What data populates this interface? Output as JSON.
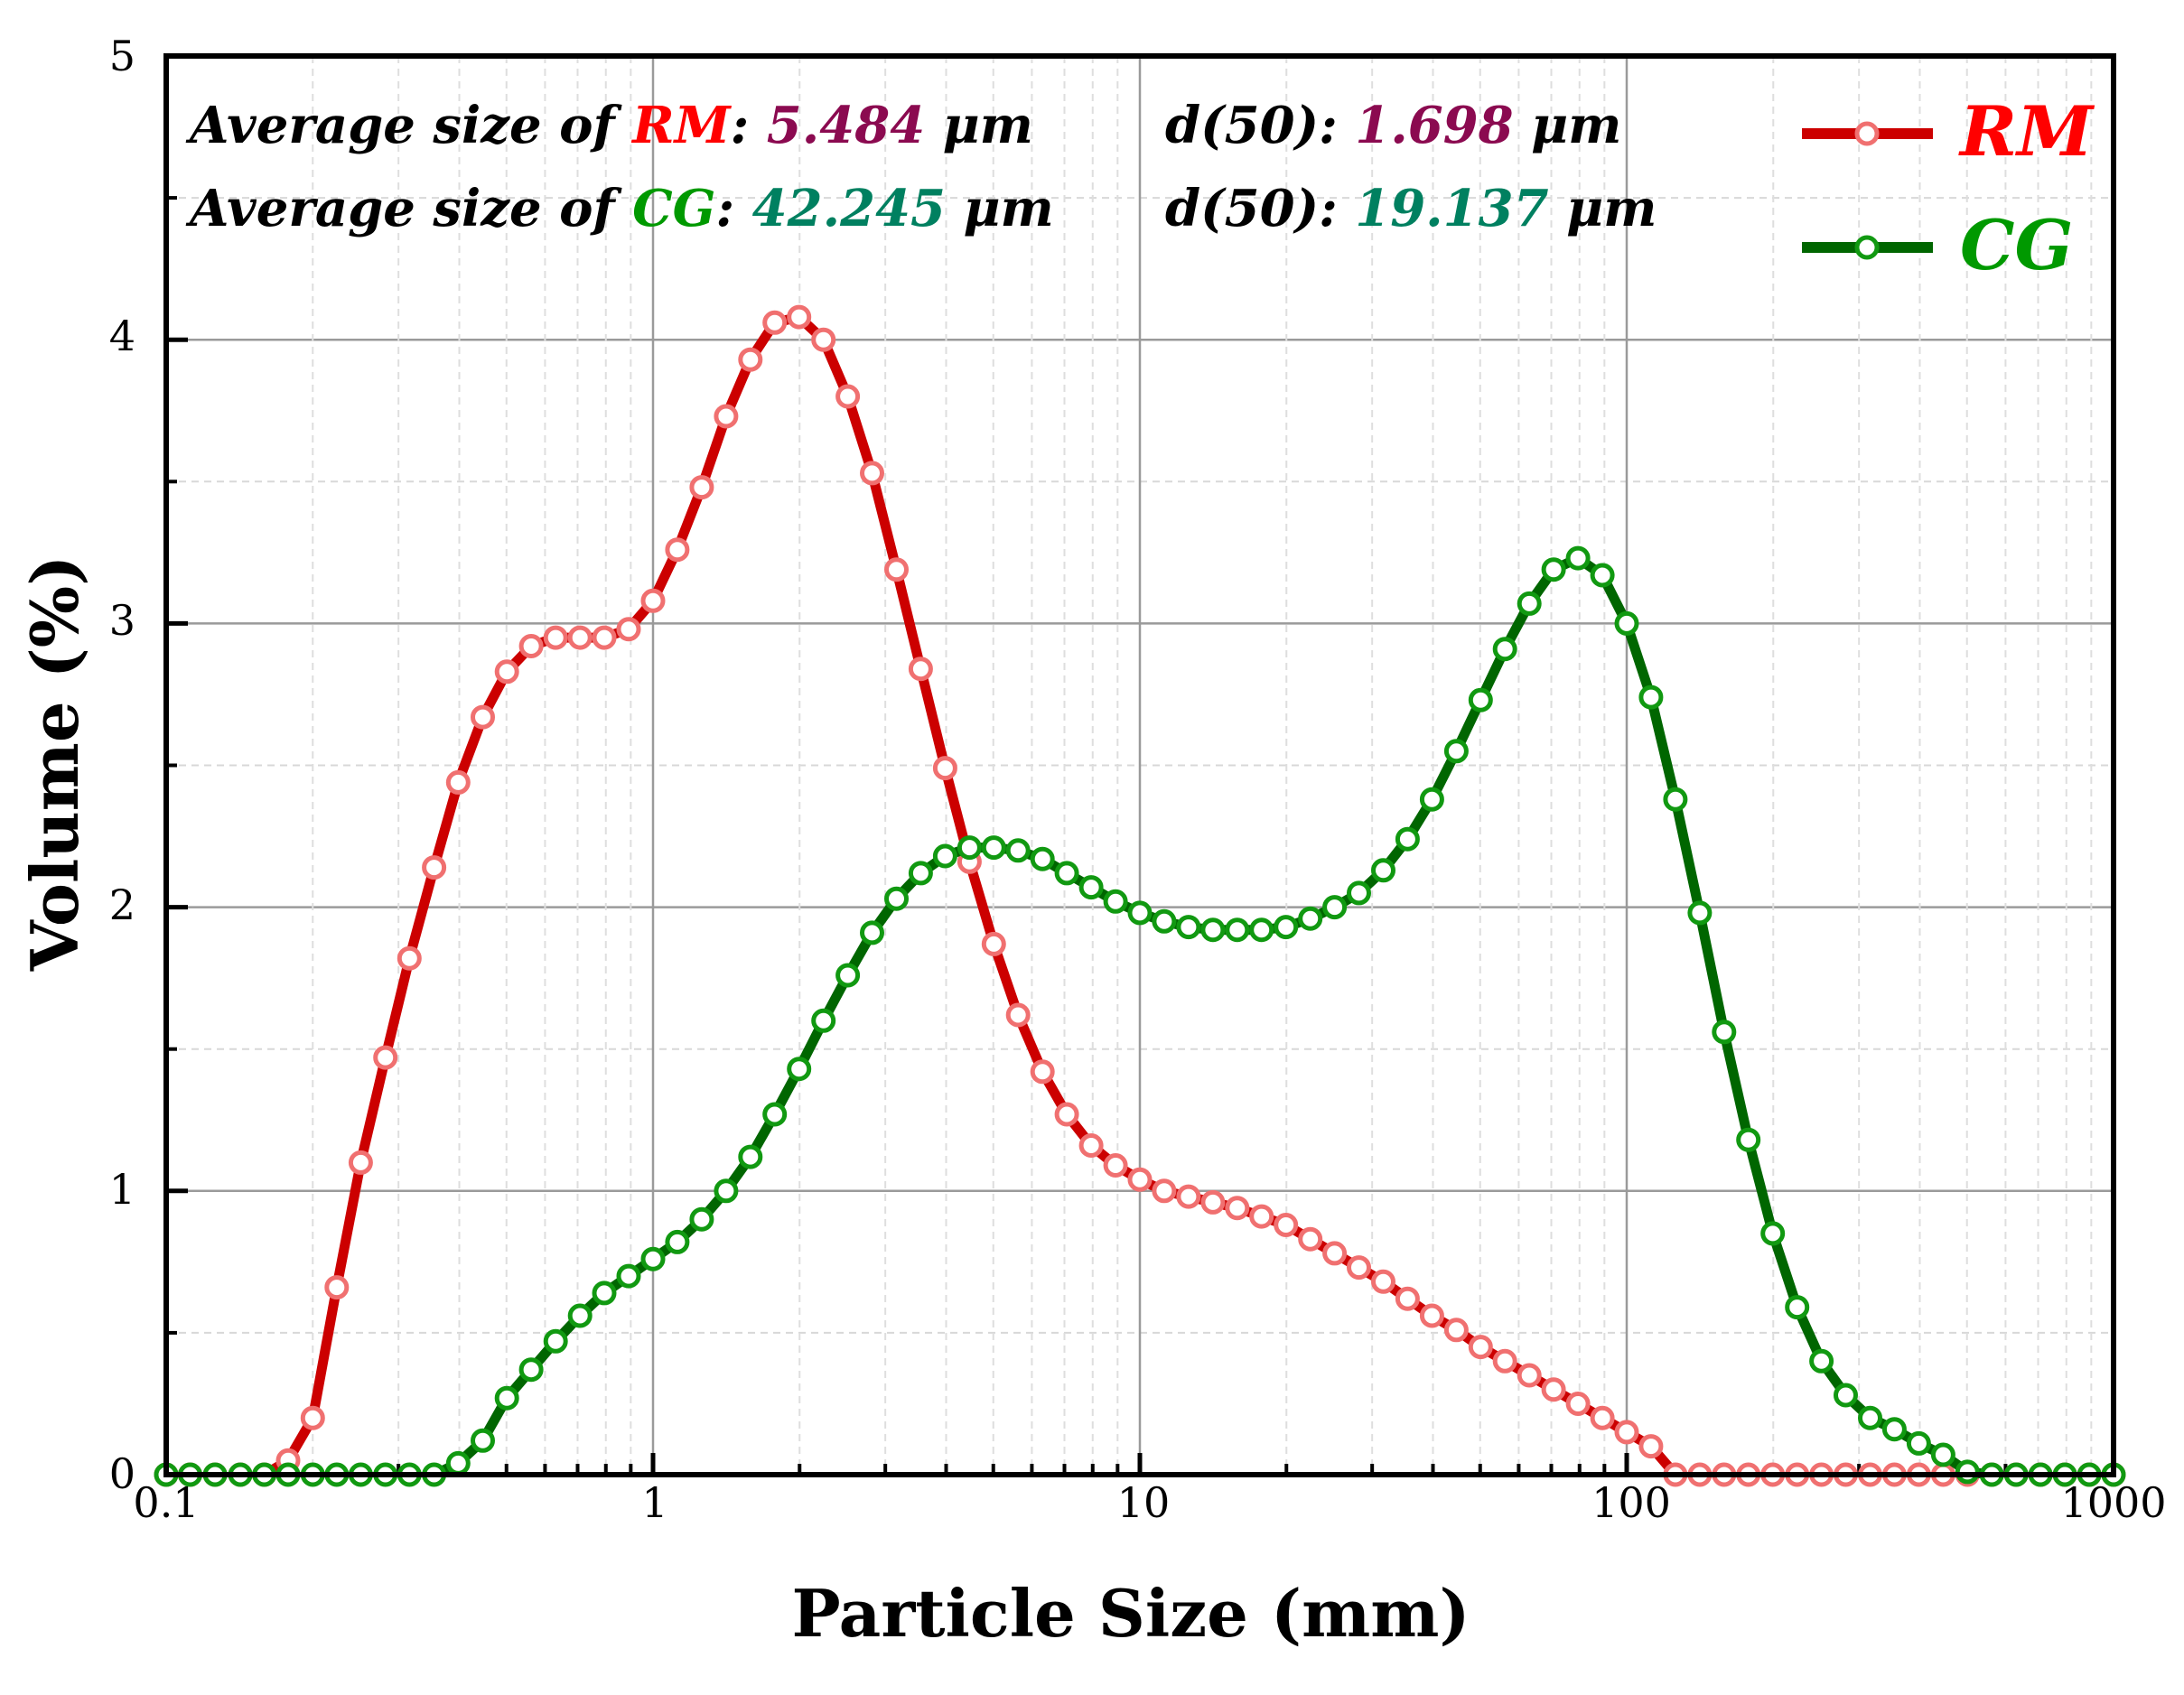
{
  "chart_data": {
    "type": "line",
    "xlabel": "Particle Size (mm)",
    "ylabel": "Volume (%)",
    "xscale": "log",
    "xlim": [
      0.1,
      1000
    ],
    "ylim": [
      0,
      5
    ],
    "x_ticks": [
      "0.1",
      "1",
      "10",
      "100",
      "1000"
    ],
    "y_ticks": [
      "0",
      "1",
      "2",
      "3",
      "4",
      "5"
    ],
    "grid": true,
    "legend_position": "top-right",
    "annotations": {
      "line1": {
        "prefix": "Average size of ",
        "sample": "RM",
        "colon": ": ",
        "avg": "5.484",
        "unit1": " μm",
        "d50_label": "d(50): ",
        "d50": "1.698",
        "unit2": " μm"
      },
      "line2": {
        "prefix": "Average size of ",
        "sample": "CG",
        "colon": ": ",
        "avg": "42.245",
        "unit1": " μm",
        "d50_label": "d(50): ",
        "d50": "19.137",
        "unit2": " μm"
      }
    },
    "colors": {
      "rm_line": "#cc0000",
      "rm_marker": "#f07070",
      "cg_line": "#006600",
      "cg_marker": "#119911",
      "rm_text": "#ff0000",
      "cg_text": "#009900",
      "rm_value": "#8b0a50",
      "cg_value": "#008060"
    },
    "series": [
      {
        "name": "RM",
        "x": [
          0.1,
          0.112,
          0.126,
          0.142,
          0.159,
          0.178,
          0.2,
          0.224,
          0.251,
          0.282,
          0.316,
          0.355,
          0.398,
          0.447,
          0.501,
          0.562,
          0.631,
          0.708,
          0.794,
          0.891,
          1.0,
          1.122,
          1.259,
          1.413,
          1.585,
          1.778,
          1.995,
          2.239,
          2.512,
          2.818,
          3.162,
          3.548,
          3.981,
          4.467,
          5.012,
          5.623,
          6.31,
          7.079,
          7.943,
          8.913,
          10.0,
          11.22,
          12.59,
          14.13,
          15.85,
          17.78,
          19.95,
          22.39,
          25.12,
          28.18,
          31.62,
          35.48,
          39.81,
          44.67,
          50.12,
          56.23,
          63.1,
          70.79,
          79.43,
          89.13,
          100.0,
          112.2,
          125.9,
          141.3,
          158.5,
          177.8,
          199.5,
          223.9,
          251.2,
          281.8,
          316.2,
          354.8,
          398.1,
          446.7,
          501.2,
          562.3,
          631.0,
          707.9,
          794.3,
          891.3,
          1000.0
        ],
        "values": [
          0,
          0,
          0,
          0,
          0,
          0.05,
          0.2,
          0.66,
          1.1,
          1.47,
          1.82,
          2.14,
          2.44,
          2.67,
          2.83,
          2.92,
          2.95,
          2.95,
          2.95,
          2.98,
          3.08,
          3.26,
          3.48,
          3.73,
          3.93,
          4.06,
          4.08,
          4.0,
          3.8,
          3.53,
          3.19,
          2.84,
          2.49,
          2.16,
          1.87,
          1.62,
          1.42,
          1.27,
          1.16,
          1.09,
          1.04,
          1.0,
          0.98,
          0.96,
          0.94,
          0.91,
          0.88,
          0.83,
          0.78,
          0.73,
          0.68,
          0.62,
          0.56,
          0.51,
          0.45,
          0.4,
          0.35,
          0.3,
          0.25,
          0.2,
          0.15,
          0.1,
          0,
          0,
          0,
          0,
          0,
          0,
          0,
          0,
          0,
          0,
          0,
          0,
          0,
          0,
          0,
          0,
          0,
          0,
          0
        ]
      },
      {
        "name": "CG",
        "x": [
          0.1,
          0.112,
          0.126,
          0.142,
          0.159,
          0.178,
          0.2,
          0.224,
          0.251,
          0.282,
          0.316,
          0.355,
          0.398,
          0.447,
          0.501,
          0.562,
          0.631,
          0.708,
          0.794,
          0.891,
          1.0,
          1.122,
          1.259,
          1.413,
          1.585,
          1.778,
          1.995,
          2.239,
          2.512,
          2.818,
          3.162,
          3.548,
          3.981,
          4.467,
          5.012,
          5.623,
          6.31,
          7.079,
          7.943,
          8.913,
          10.0,
          11.22,
          12.59,
          14.13,
          15.85,
          17.78,
          19.95,
          22.39,
          25.12,
          28.18,
          31.62,
          35.48,
          39.81,
          44.67,
          50.12,
          56.23,
          63.1,
          70.79,
          79.43,
          89.13,
          100.0,
          112.2,
          125.9,
          141.3,
          158.5,
          177.8,
          199.5,
          223.9,
          251.2,
          281.8,
          316.2,
          354.8,
          398.1,
          446.7,
          501.2,
          562.3,
          631.0,
          707.9,
          794.3,
          891.3,
          1000.0
        ],
        "values": [
          0,
          0,
          0,
          0,
          0,
          0,
          0,
          0,
          0,
          0,
          0,
          0,
          0.04,
          0.12,
          0.27,
          0.37,
          0.47,
          0.56,
          0.64,
          0.7,
          0.76,
          0.82,
          0.9,
          1.0,
          1.12,
          1.27,
          1.43,
          1.6,
          1.76,
          1.91,
          2.03,
          2.12,
          2.18,
          2.21,
          2.21,
          2.2,
          2.17,
          2.12,
          2.07,
          2.02,
          1.98,
          1.95,
          1.93,
          1.92,
          1.92,
          1.92,
          1.93,
          1.96,
          2.0,
          2.05,
          2.13,
          2.24,
          2.38,
          2.55,
          2.73,
          2.91,
          3.07,
          3.19,
          3.23,
          3.17,
          3.0,
          2.74,
          2.38,
          1.98,
          1.56,
          1.18,
          0.85,
          0.59,
          0.4,
          0.28,
          0.2,
          0.16,
          0.11,
          0.07,
          0.01,
          0,
          0,
          0,
          0,
          0,
          0
        ]
      }
    ]
  }
}
